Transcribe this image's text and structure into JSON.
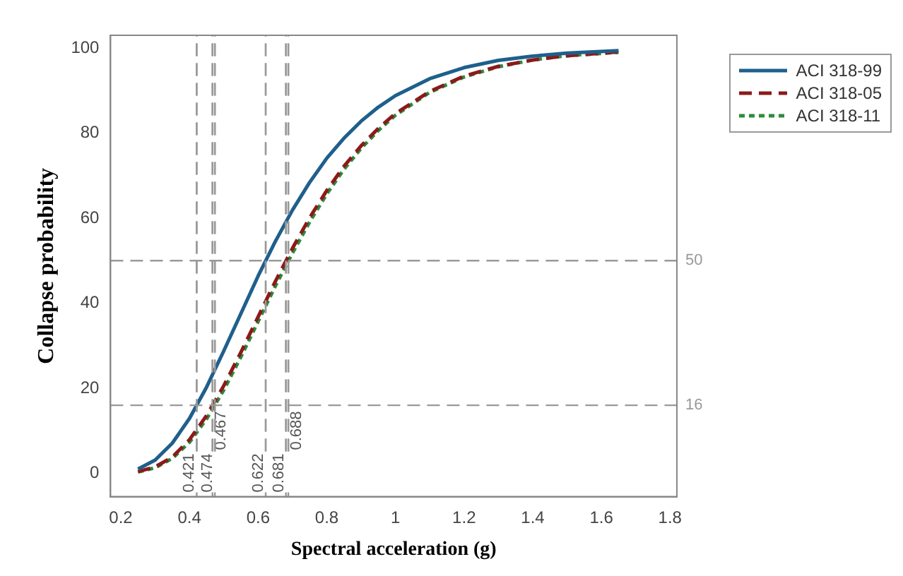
{
  "chart_data": {
    "type": "line",
    "xlabel": "Spectral acceleration (g)",
    "ylabel": "Collapse probability",
    "x": [
      0.25,
      0.3,
      0.35,
      0.4,
      0.45,
      0.5,
      0.55,
      0.6,
      0.65,
      0.7,
      0.75,
      0.8,
      0.85,
      0.9,
      0.95,
      1.0,
      1.1,
      1.2,
      1.3,
      1.4,
      1.5,
      1.65
    ],
    "series": [
      {
        "name": "ACI 318-99",
        "color": "#1f5f8b",
        "line_style": "solid",
        "values": [
          1.0,
          3.1,
          7.1,
          12.9,
          20.3,
          28.8,
          37.6,
          46.4,
          54.5,
          61.9,
          68.4,
          74.1,
          78.8,
          82.8,
          86.1,
          88.8,
          92.8,
          95.4,
          97.1,
          98.1,
          98.8,
          99.4
        ]
      },
      {
        "name": "ACI 318-05",
        "color": "#8b1a1a",
        "line_style": "dashed",
        "values": [
          0.4,
          1.5,
          3.8,
          7.9,
          13.6,
          20.6,
          28.5,
          36.8,
          45.1,
          52.9,
          60.1,
          66.5,
          72.2,
          77.0,
          81.1,
          84.6,
          89.8,
          93.4,
          95.7,
          97.2,
          98.2,
          99.1
        ]
      },
      {
        "name": "ACI 318-11",
        "color": "#2e8b3e",
        "line_style": "dotted",
        "values": [
          0.3,
          1.3,
          3.5,
          7.3,
          12.8,
          19.6,
          27.4,
          35.7,
          44.0,
          51.8,
          59.1,
          65.7,
          71.5,
          76.4,
          80.6,
          84.2,
          89.6,
          93.2,
          95.6,
          97.2,
          98.2,
          99.0
        ]
      }
    ],
    "xlim": [
      0.17,
      1.82
    ],
    "xticks": [
      0.2,
      0.4,
      0.6,
      0.8,
      1.0,
      1.2,
      1.4,
      1.6,
      1.8
    ],
    "ylim": [
      -5.5,
      103
    ],
    "yticks": [
      0,
      20,
      40,
      60,
      80,
      100
    ],
    "ref_lines": [
      {
        "axis": "y",
        "value": 50,
        "label": "50",
        "color": "#999999",
        "line_style": "dashed"
      },
      {
        "axis": "y",
        "value": 16,
        "label": "16",
        "color": "#999999",
        "line_style": "dashed"
      },
      {
        "axis": "x",
        "value": 0.421,
        "label": "0.421",
        "color": "#999999",
        "line_style": "dashed"
      },
      {
        "axis": "x",
        "value": 0.467,
        "label": "0.467",
        "color": "#999999",
        "line_style": "dashed"
      },
      {
        "axis": "x",
        "value": 0.474,
        "label": "0.474",
        "color": "#999999",
        "line_style": "dashed"
      },
      {
        "axis": "x",
        "value": 0.622,
        "label": "0.622",
        "color": "#999999",
        "line_style": "dashed"
      },
      {
        "axis": "x",
        "value": 0.681,
        "label": "0.681",
        "color": "#999999",
        "line_style": "dashed"
      },
      {
        "axis": "x",
        "value": 0.688,
        "label": "0.688",
        "color": "#999999",
        "line_style": "dashed"
      }
    ],
    "grid": false,
    "legend": "top right",
    "marker": "none"
  }
}
